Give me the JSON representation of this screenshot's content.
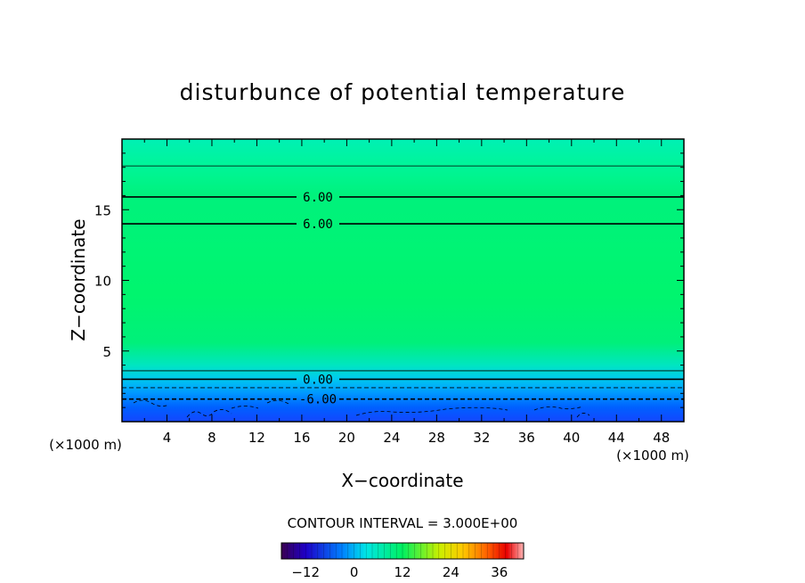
{
  "chart_data": {
    "type": "contour",
    "title": "disturbunce of potential temperature",
    "xlabel": "X−coordinate",
    "ylabel": "Z−coordinate",
    "x_unit_label": "(×1000 m)",
    "z_unit_label": "(×1000 m)",
    "xlim": [
      0,
      50
    ],
    "ylim": [
      0,
      20
    ],
    "x_ticks": [
      4,
      8,
      12,
      16,
      20,
      24,
      28,
      32,
      36,
      40,
      44,
      48
    ],
    "y_ticks": [
      5,
      10,
      15
    ],
    "contour_interval_text": "CONTOUR INTERVAL = 3.000E+00",
    "contours": [
      {
        "level": 3,
        "z": 18.1,
        "label": ""
      },
      {
        "level": 6,
        "z": 15.9,
        "label": "6.00"
      },
      {
        "level": 6,
        "z": 14.0,
        "label": "6.00"
      },
      {
        "level": 3,
        "z": 3.6,
        "label": ""
      },
      {
        "level": 0,
        "z": 3.0,
        "label": "0.00"
      },
      {
        "level": -3,
        "z": 2.4,
        "label": ""
      },
      {
        "level": -6,
        "z": 1.6,
        "label": "-6.00"
      }
    ],
    "colorbar": {
      "min": -18,
      "max": 42,
      "tick_values": [
        -12,
        0,
        12,
        24,
        36
      ],
      "tick_labels": [
        "−12",
        "0",
        "12",
        "24",
        "36"
      ]
    }
  }
}
